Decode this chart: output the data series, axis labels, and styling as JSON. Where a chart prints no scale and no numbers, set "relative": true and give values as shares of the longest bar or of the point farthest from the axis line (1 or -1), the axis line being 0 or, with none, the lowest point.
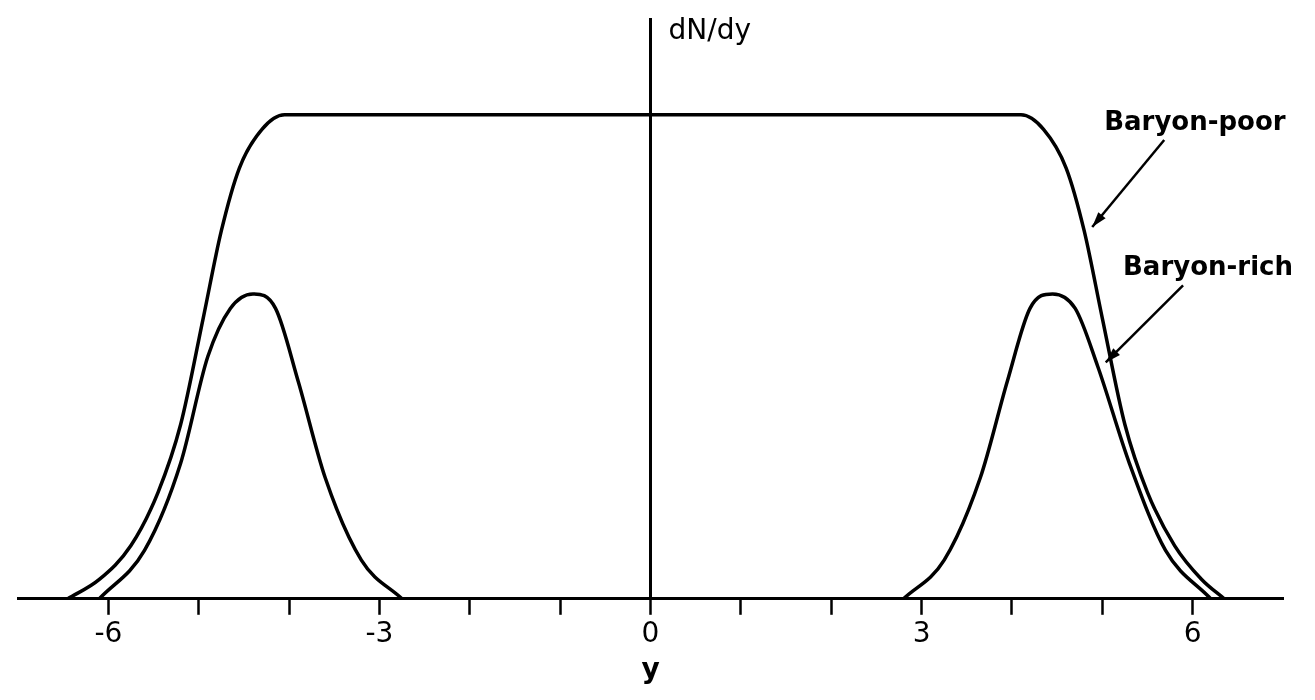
{
  "chart_data": {
    "type": "line",
    "xlabel": "y",
    "ylabel": "dN/dy",
    "relative": true,
    "xlim": [
      -7,
      7
    ],
    "xticks": [
      -6,
      {
        "value": -5,
        "label": null
      },
      {
        "value": -4,
        "label": null
      },
      -3,
      {
        "value": -2,
        "label": null
      },
      {
        "value": -1,
        "label": null
      },
      0,
      {
        "value": 1,
        "label": null
      },
      {
        "value": 2,
        "label": null
      },
      3,
      {
        "value": 4,
        "label": null
      },
      {
        "value": 5,
        "label": null
      },
      6
    ],
    "marker": "none",
    "line_style": "solid",
    "series": [
      {
        "name": "Baryon-poor",
        "color": "#000000",
        "x": [
          -6.45,
          -6.1,
          -5.75,
          -5.45,
          -5.2,
          -4.95,
          -4.75,
          -4.55,
          -4.3,
          -4.05,
          4.1,
          4.35,
          4.6,
          4.8,
          5.0,
          5.25,
          5.5,
          5.8,
          6.1,
          6.35
        ],
        "values": [
          0,
          0.04,
          0.11,
          0.22,
          0.36,
          0.58,
          0.76,
          0.89,
          0.97,
          1,
          1,
          0.97,
          0.89,
          0.76,
          0.58,
          0.36,
          0.22,
          0.11,
          0.04,
          0
        ]
      },
      {
        "name": "Baryon-rich",
        "color": "#000000",
        "x": [
          -6.1,
          -5.6,
          -5.2,
          -4.9,
          -4.65,
          -4.4,
          -4.15,
          -3.9,
          -3.6,
          -3.2,
          -2.75,
          0,
          2.8,
          3.25,
          3.65,
          3.95,
          4.2,
          4.45,
          4.7,
          4.95,
          5.3,
          5.7,
          6.2
        ],
        "values": [
          0,
          0.1,
          0.28,
          0.5,
          0.6,
          0.63,
          0.6,
          0.45,
          0.25,
          0.08,
          0,
          null,
          0,
          0.08,
          0.25,
          0.45,
          0.6,
          0.63,
          0.6,
          0.48,
          0.28,
          0.1,
          0
        ]
      }
    ]
  }
}
